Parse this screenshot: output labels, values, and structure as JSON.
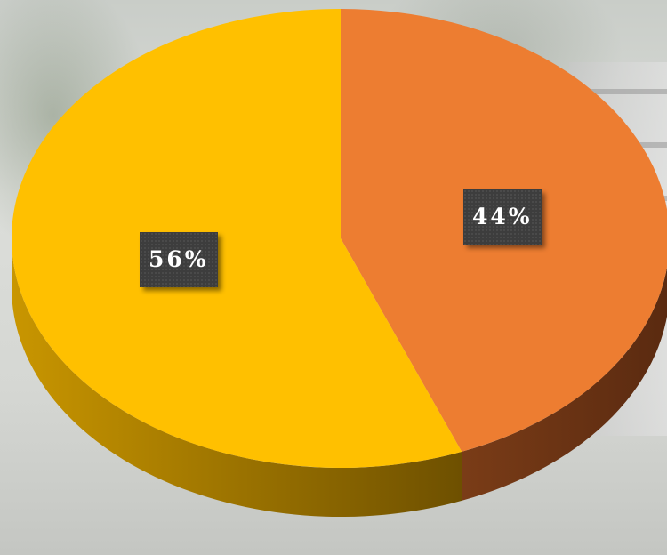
{
  "chart_data": {
    "type": "pie",
    "style": "3d",
    "title": "",
    "slices": [
      {
        "label": "44%",
        "value": 44,
        "color": "#ED7D31",
        "side_color": "#6B3415"
      },
      {
        "label": "56%",
        "value": 56,
        "color": "#FFC000",
        "side_color": "#7A5800"
      }
    ],
    "start_angle_deg": 0,
    "direction": "clockwise",
    "legend": "none",
    "data_labels": "boxed-dark"
  }
}
